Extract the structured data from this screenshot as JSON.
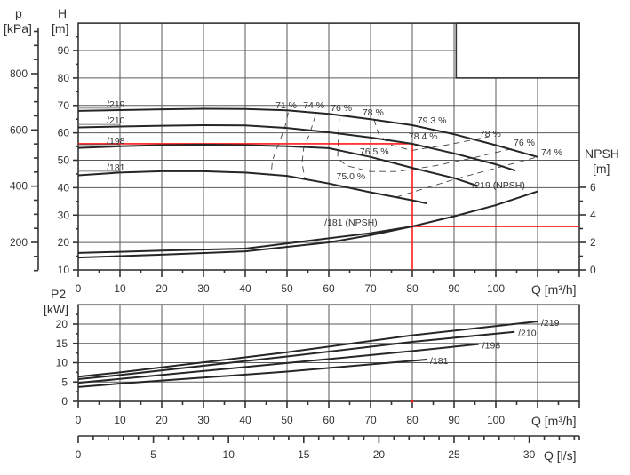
{
  "chart_data": [
    {
      "type": "line",
      "panel": "head-npsh",
      "xlabel": "Q [m³/h]",
      "xlim": [
        0,
        120
      ],
      "xticks": [
        0,
        10,
        20,
        30,
        40,
        50,
        60,
        70,
        80,
        90,
        100
      ],
      "y_left": {
        "title": "H",
        "unit": "[m]",
        "ylim": [
          10,
          100
        ],
        "ticks": [
          10,
          20,
          30,
          40,
          50,
          60,
          70,
          80,
          90
        ]
      },
      "y_pressure": {
        "title": "p",
        "unit": "[kPa]",
        "ticks": [
          200,
          400,
          600,
          800
        ]
      },
      "y_right": {
        "title": "NPSH",
        "unit": "[m]",
        "ticks": [
          0,
          2,
          4,
          6
        ]
      },
      "grid": true,
      "head_series": [
        {
          "name": "/219",
          "label_at": [
            4.7,
            70.6
          ],
          "x": [
            0,
            10,
            20,
            30,
            40,
            50,
            60,
            70,
            80,
            90,
            100,
            110
          ],
          "y": [
            68,
            68.3,
            68.6,
            68.8,
            68.7,
            68.2,
            66.9,
            65.0,
            62.8,
            59.5,
            55.5,
            51.2
          ]
        },
        {
          "name": "/210",
          "label_at": [
            4.7,
            64.7
          ],
          "x": [
            0,
            10,
            20,
            30,
            40,
            50,
            60,
            70,
            80,
            90,
            100,
            104.7
          ],
          "y": [
            62,
            62.3,
            62.6,
            62.8,
            62.7,
            61.8,
            60.2,
            58.3,
            56.0,
            52.5,
            48.5,
            46.2
          ]
        },
        {
          "name": "/198",
          "label_at": [
            4.7,
            57.3
          ],
          "x": [
            0,
            10,
            20,
            30,
            40,
            50,
            60,
            70,
            80,
            90,
            95.7
          ],
          "y": [
            54.5,
            55.1,
            55.5,
            55.7,
            55.5,
            55.1,
            54.4,
            51.2,
            47.2,
            43.5,
            40.6
          ]
        },
        {
          "name": "/181",
          "label_at": [
            4.7,
            47.6
          ],
          "x": [
            0,
            10,
            20,
            30,
            40,
            50,
            60,
            70,
            80,
            83.4
          ],
          "y": [
            44.5,
            45.5,
            46.0,
            46.0,
            45.5,
            44.3,
            41.5,
            38.3,
            35.4,
            34.3
          ]
        }
      ],
      "npsh_series": [
        {
          "name": "/219 (NPSH)",
          "label_at": [
            109.6,
            6.2
          ],
          "x": [
            0,
            20,
            40,
            60,
            70,
            80,
            90,
            100,
            110
          ],
          "y": [
            1.23,
            1.4,
            1.55,
            2.3,
            2.67,
            3.16,
            3.9,
            4.7,
            5.7
          ]
        },
        {
          "name": "/181 (NPSH)",
          "label_at": [
            65.3,
            3.5
          ],
          "x": [
            0,
            20,
            40,
            60,
            70,
            80
          ],
          "y": [
            0.9,
            1.1,
            1.35,
            2.0,
            2.52,
            3.16
          ]
        }
      ],
      "efficiency_contours": [
        {
          "x": [
            50.3,
            49.5,
            48.0,
            46.5,
            46.2
          ],
          "y": [
            67.4,
            62,
            56,
            50,
            44.8
          ]
        },
        {
          "x": [
            56.8,
            55.5,
            54.0,
            53.6,
            54.3
          ],
          "y": [
            66.4,
            60,
            54.5,
            49,
            43.1
          ]
        },
        {
          "x": [
            62.5,
            62.3,
            62.1,
            64.3,
            69.9,
            76.3,
            85.5,
            95,
            104.7
          ],
          "y": [
            65.3,
            58,
            50.7,
            48,
            45.9,
            45.9,
            48,
            51,
            54.5
          ]
        },
        {
          "x": [
            70.8,
            72,
            75,
            79.9,
            88,
            98.3
          ],
          "y": [
            65,
            59.3,
            55.5,
            53.6,
            55.5,
            58.6
          ]
        },
        {
          "x": [
            76,
            90,
            110
          ],
          "y": [
            36.5,
            43,
            51.2
          ]
        }
      ],
      "efficiency_labels": [
        {
          "text": "71 %",
          "at": [
            49.8,
            70.2
          ]
        },
        {
          "text": "74 %",
          "at": [
            56.4,
            70.2
          ]
        },
        {
          "text": "76 %",
          "at": [
            63.0,
            69.3
          ]
        },
        {
          "text": "78 %",
          "at": [
            70.6,
            67.7
          ]
        },
        {
          "text": "79.3 %",
          "at": [
            84.7,
            64.7
          ]
        },
        {
          "text": "78.4 %",
          "at": [
            82.6,
            58.9
          ]
        },
        {
          "text": "78 %",
          "at": [
            98.7,
            59.9
          ]
        },
        {
          "text": "76 %",
          "at": [
            106.8,
            56.6
          ]
        },
        {
          "text": "74 %",
          "at": [
            113.4,
            53.1
          ]
        },
        {
          "text": "76.5 %",
          "at": [
            70.9,
            53.4
          ]
        },
        {
          "text": "75.0 %",
          "at": [
            65.3,
            44.3
          ]
        }
      ],
      "operating_point": {
        "Q": 80,
        "H": 56,
        "NPSH": 3.16,
        "color": "#ff1a1a"
      },
      "legend_box": {
        "x": [
          90.5,
          120
        ],
        "y": [
          80,
          100
        ]
      }
    },
    {
      "type": "line",
      "panel": "power",
      "xlabel": "Q [m³/h]",
      "xlim": [
        0,
        120
      ],
      "xticks": [
        0,
        10,
        20,
        30,
        40,
        50,
        60,
        70,
        80,
        90,
        100
      ],
      "y_left": {
        "title": "P2",
        "unit": "[kW]",
        "ylim": [
          0,
          25
        ],
        "ticks": [
          0,
          5,
          10,
          15,
          20
        ]
      },
      "grid": true,
      "series": [
        {
          "name": "/219",
          "x": [
            0,
            10,
            50,
            80,
            110
          ],
          "y": [
            6.4,
            7.5,
            12.7,
            17.1,
            20.7
          ]
        },
        {
          "name": "/210",
          "x": [
            0,
            10,
            50,
            80,
            104.5
          ],
          "y": [
            5.75,
            6.8,
            11.6,
            15.4,
            18.0
          ]
        },
        {
          "name": "/198",
          "x": [
            0,
            10,
            50,
            80,
            95.9
          ],
          "y": [
            4.8,
            5.8,
            9.9,
            13.0,
            14.8
          ]
        },
        {
          "name": "/181",
          "x": [
            0,
            10,
            50,
            83.4
          ],
          "y": [
            3.7,
            4.6,
            7.7,
            10.8
          ]
        }
      ],
      "marker": {
        "Q": 80,
        "P2": 0,
        "color": "#ff1a1a"
      }
    },
    {
      "type": "axis",
      "panel": "flow-ls",
      "xlabel": "Q [l/s]",
      "xticks": [
        0,
        5,
        10,
        15,
        20,
        25,
        30
      ]
    }
  ]
}
